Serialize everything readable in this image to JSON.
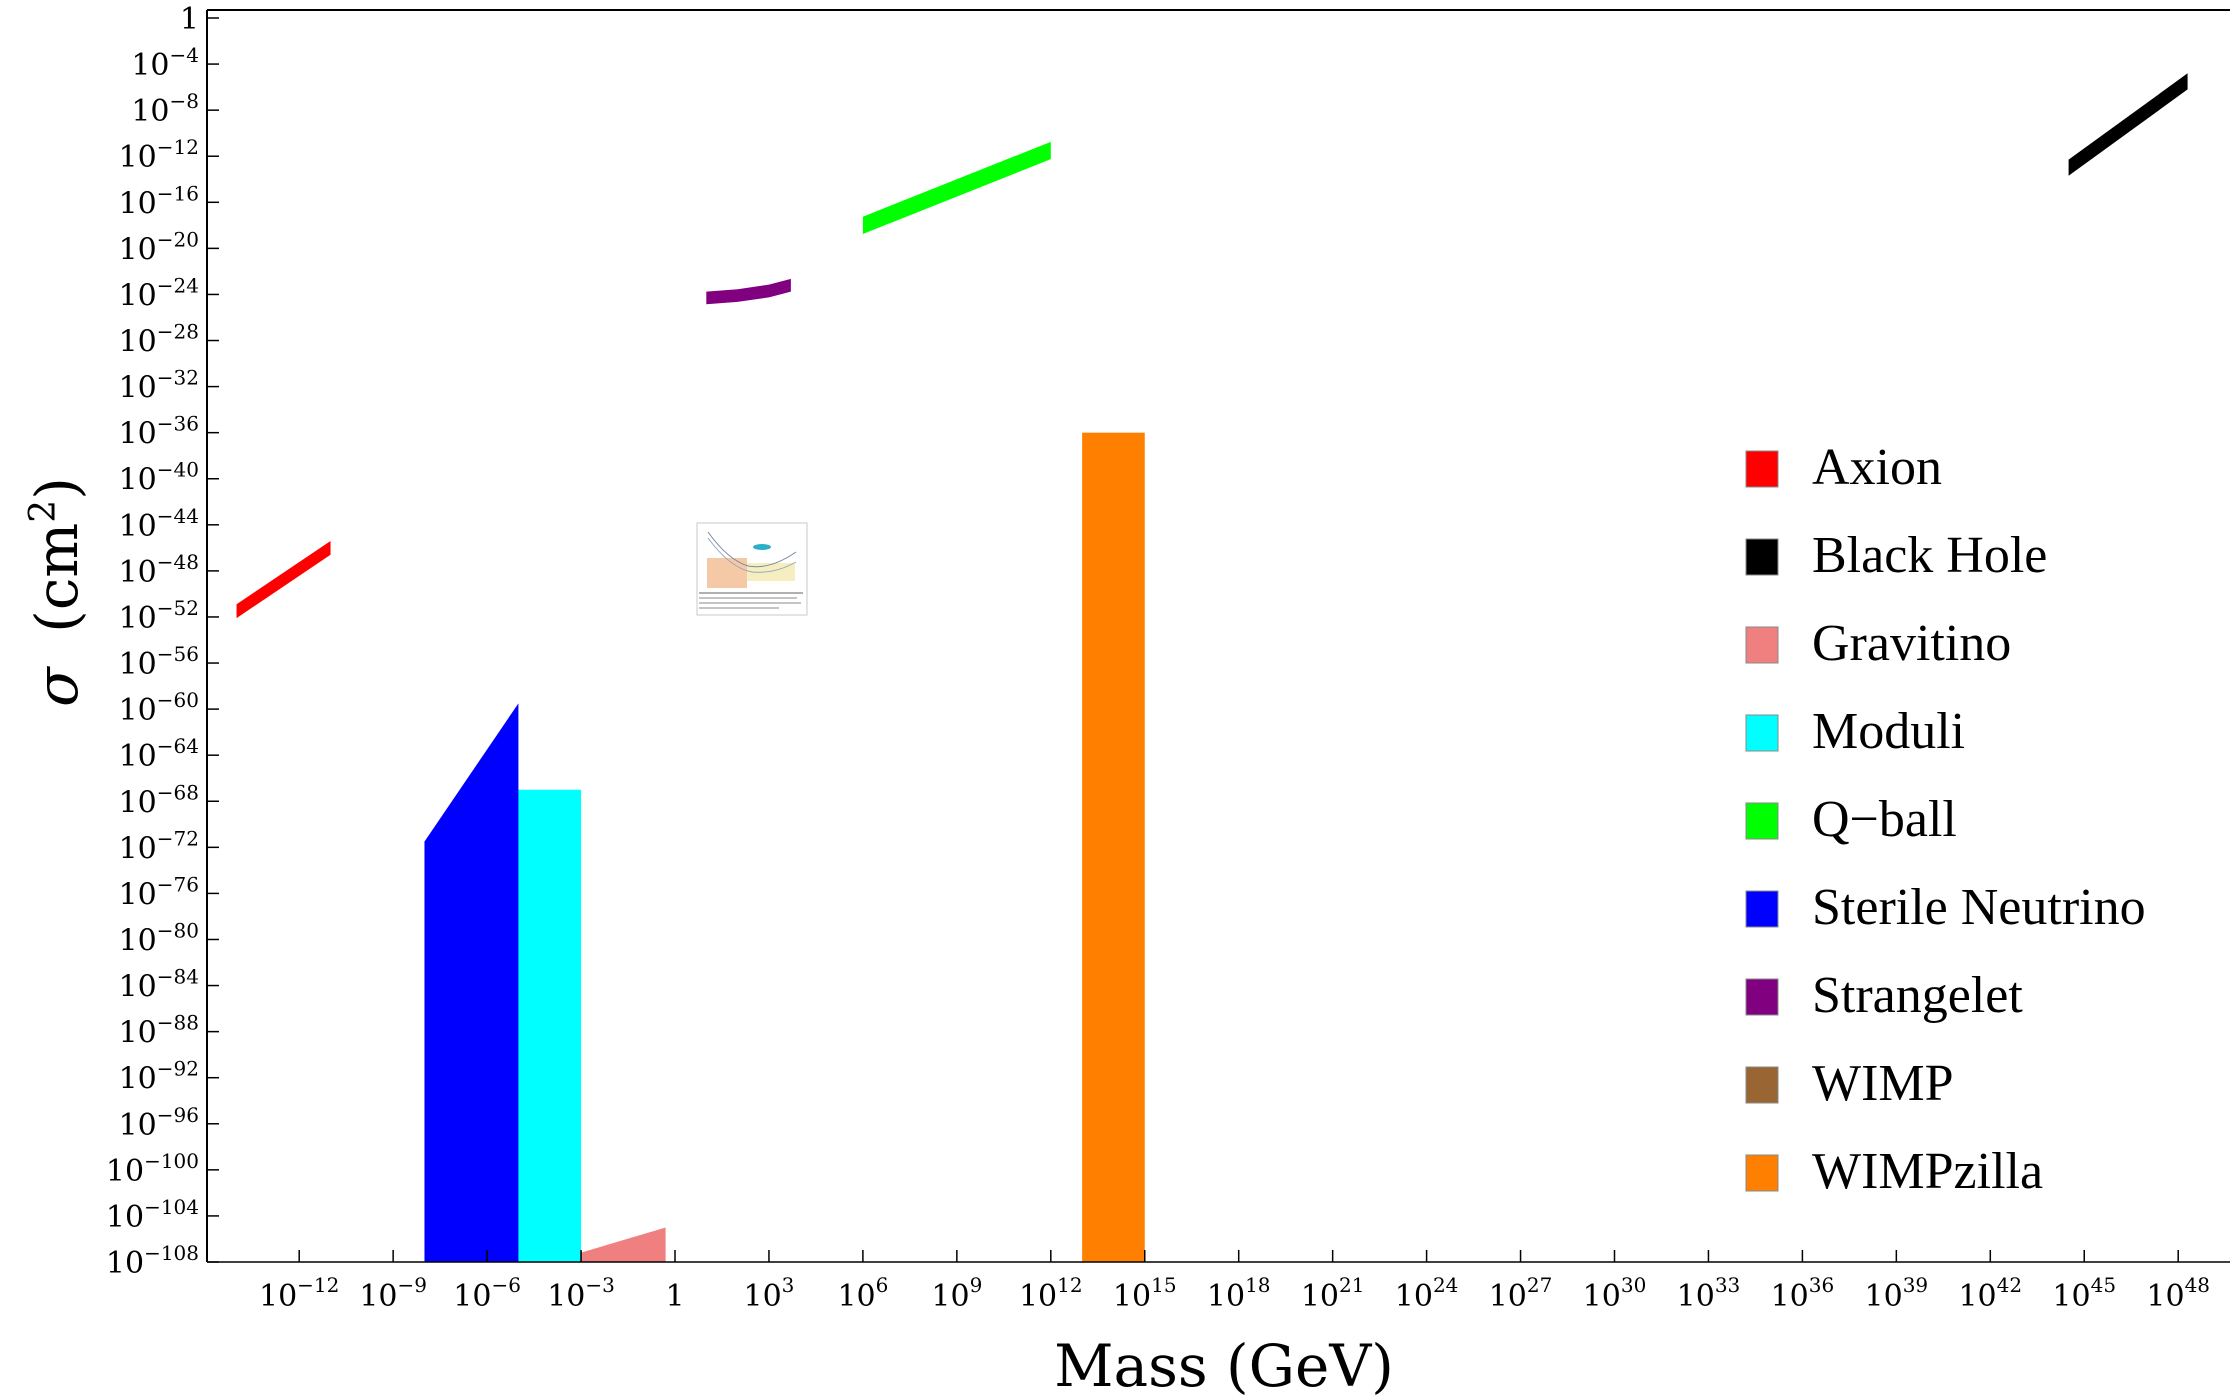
{
  "chart_data": {
    "type": "area",
    "xlabel": "Mass (GeV)",
    "ylabel_symbol": "σ",
    "ylabel_unit": "(cm",
    "ylabel_unit_exp": "2",
    "ylabel_unit_close": ")",
    "x_scale": "log10",
    "y_scale": "log10",
    "xlim": [
      -14,
      50
    ],
    "ylim": [
      -108,
      0
    ],
    "grid": false,
    "legend_placement": "right",
    "x_ticks": [
      {
        "exp": -12,
        "base": "10",
        "sup": "−12"
      },
      {
        "exp": -9,
        "base": "10",
        "sup": "−9"
      },
      {
        "exp": -6,
        "base": "10",
        "sup": "−6"
      },
      {
        "exp": -3,
        "base": "10",
        "sup": "−3"
      },
      {
        "exp": 0,
        "base": "1",
        "sup": ""
      },
      {
        "exp": 3,
        "base": "10",
        "sup": "3"
      },
      {
        "exp": 6,
        "base": "10",
        "sup": "6"
      },
      {
        "exp": 9,
        "base": "10",
        "sup": "9"
      },
      {
        "exp": 12,
        "base": "10",
        "sup": "12"
      },
      {
        "exp": 15,
        "base": "10",
        "sup": "15"
      },
      {
        "exp": 18,
        "base": "10",
        "sup": "18"
      },
      {
        "exp": 21,
        "base": "10",
        "sup": "21"
      },
      {
        "exp": 24,
        "base": "10",
        "sup": "24"
      },
      {
        "exp": 27,
        "base": "10",
        "sup": "27"
      },
      {
        "exp": 30,
        "base": "10",
        "sup": "30"
      },
      {
        "exp": 33,
        "base": "10",
        "sup": "33"
      },
      {
        "exp": 36,
        "base": "10",
        "sup": "36"
      },
      {
        "exp": 39,
        "base": "10",
        "sup": "39"
      },
      {
        "exp": 42,
        "base": "10",
        "sup": "42"
      },
      {
        "exp": 45,
        "base": "10",
        "sup": "45"
      },
      {
        "exp": 48,
        "base": "10",
        "sup": "48"
      }
    ],
    "y_ticks": [
      {
        "exp": 0,
        "base": "1",
        "sup": ""
      },
      {
        "exp": -4,
        "base": "10",
        "sup": "−4"
      },
      {
        "exp": -8,
        "base": "10",
        "sup": "−8"
      },
      {
        "exp": -12,
        "base": "10",
        "sup": "−12"
      },
      {
        "exp": -16,
        "base": "10",
        "sup": "−16"
      },
      {
        "exp": -20,
        "base": "10",
        "sup": "−20"
      },
      {
        "exp": -24,
        "base": "10",
        "sup": "−24"
      },
      {
        "exp": -28,
        "base": "10",
        "sup": "−28"
      },
      {
        "exp": -32,
        "base": "10",
        "sup": "−32"
      },
      {
        "exp": -36,
        "base": "10",
        "sup": "−36"
      },
      {
        "exp": -40,
        "base": "10",
        "sup": "−40"
      },
      {
        "exp": -44,
        "base": "10",
        "sup": "−44"
      },
      {
        "exp": -48,
        "base": "10",
        "sup": "−48"
      },
      {
        "exp": -52,
        "base": "10",
        "sup": "−52"
      },
      {
        "exp": -56,
        "base": "10",
        "sup": "−56"
      },
      {
        "exp": -60,
        "base": "10",
        "sup": "−60"
      },
      {
        "exp": -64,
        "base": "10",
        "sup": "−64"
      },
      {
        "exp": -68,
        "base": "10",
        "sup": "−68"
      },
      {
        "exp": -72,
        "base": "10",
        "sup": "−72"
      },
      {
        "exp": -76,
        "base": "10",
        "sup": "−76"
      },
      {
        "exp": -80,
        "base": "10",
        "sup": "−80"
      },
      {
        "exp": -84,
        "base": "10",
        "sup": "−84"
      },
      {
        "exp": -88,
        "base": "10",
        "sup": "−88"
      },
      {
        "exp": -92,
        "base": "10",
        "sup": "−92"
      },
      {
        "exp": -96,
        "base": "10",
        "sup": "−96"
      },
      {
        "exp": -100,
        "base": "10",
        "sup": "−100"
      },
      {
        "exp": -104,
        "base": "10",
        "sup": "−104"
      },
      {
        "exp": -108,
        "base": "10",
        "sup": "−108"
      }
    ],
    "series": [
      {
        "name": "Axion",
        "color": "#ff0000",
        "log_mass": [
          -14,
          -11
        ],
        "log_sigma": [
          -51.5,
          -46.0
        ],
        "band_width_log_sigma": 1.2
      },
      {
        "name": "Black Hole",
        "color": "#000000",
        "log_mass": [
          44.5,
          48.3
        ],
        "log_sigma": [
          -13.0,
          -5.5
        ],
        "band_width_log_sigma": 1.4
      },
      {
        "name": "Gravitino",
        "color": "#f08080",
        "polygon_log_mass": [
          -4,
          -0.3,
          -0.3
        ],
        "polygon_log_sigma": [
          -108,
          -108,
          -105
        ]
      },
      {
        "name": "Moduli",
        "color": "#00ffff",
        "log_mass": [
          -6,
          -3
        ],
        "log_sigma_min": -108,
        "log_sigma_max": -67
      },
      {
        "name": "Q−ball",
        "color": "#00ff00",
        "log_mass": [
          6,
          12
        ],
        "log_sigma": [
          -18,
          -11.5
        ],
        "band_width_log_sigma": 1.5
      },
      {
        "name": "Sterile Neutrino",
        "color": "#0000ff",
        "polygon_log_mass": [
          -8,
          -5,
          -5,
          -8
        ],
        "polygon_log_sigma": [
          -108,
          -108,
          -59.5,
          -71.5
        ]
      },
      {
        "name": "Strangelet",
        "color": "#800080",
        "log_mass": [
          1,
          2,
          3,
          3.7
        ],
        "log_sigma": [
          -24.3,
          -24.1,
          -23.7,
          -23.2
        ],
        "band_width_log_sigma": 1.1
      },
      {
        "name": "WIMP",
        "color": "#996633"
      },
      {
        "name": "WIMPzilla",
        "color": "#ff8000",
        "log_mass": [
          13,
          15
        ],
        "log_sigma_min": -108,
        "log_sigma_max": -36
      }
    ]
  }
}
